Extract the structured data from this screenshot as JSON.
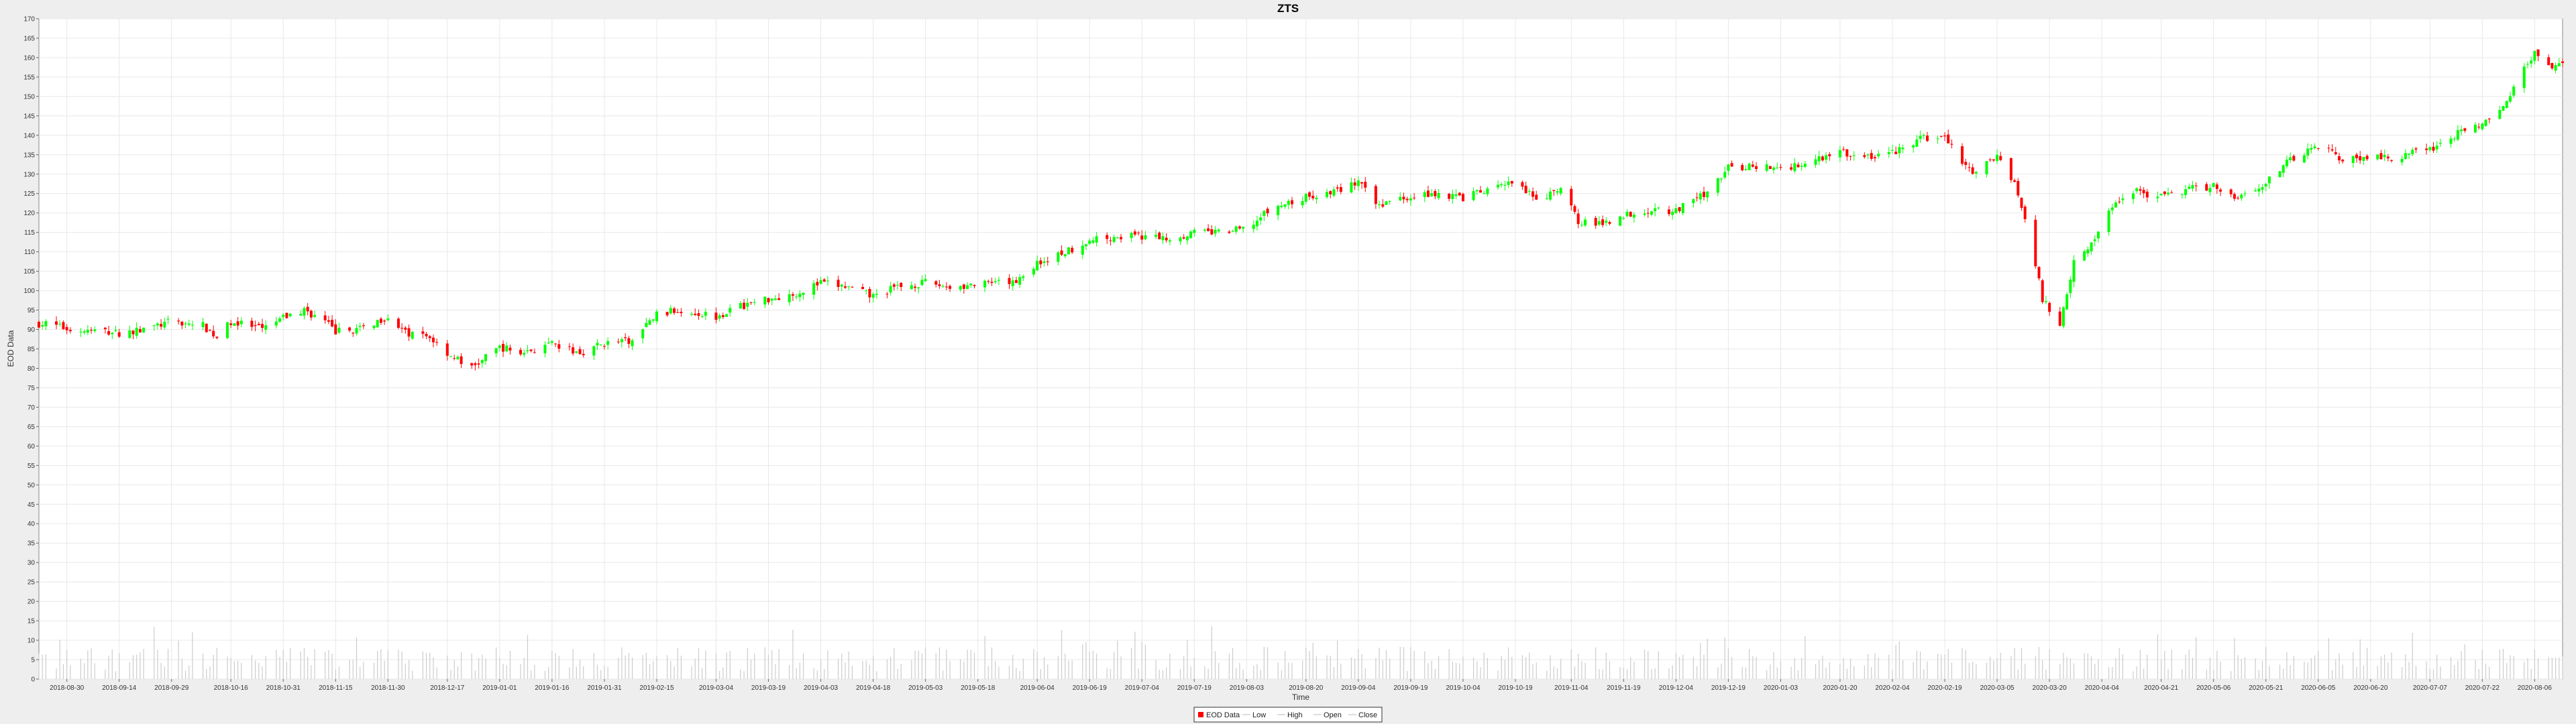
{
  "chart_data": {
    "type": "candlestick",
    "title": "ZTS",
    "xlabel": "Time",
    "ylabel": "EOD Data",
    "ylim": [
      0,
      170
    ],
    "y_ticks": [
      0,
      5,
      10,
      15,
      20,
      25,
      30,
      35,
      40,
      45,
      50,
      55,
      60,
      65,
      70,
      75,
      80,
      85,
      90,
      95,
      100,
      105,
      110,
      115,
      120,
      125,
      130,
      135,
      140,
      145,
      150,
      155,
      160,
      165,
      170
    ],
    "x_range": [
      "2018-08-22",
      "2020-08-14"
    ],
    "x_ticks": [
      "2018-08-30",
      "2018-09-14",
      "2018-09-29",
      "2018-10-16",
      "2018-10-31",
      "2018-11-15",
      "2018-11-30",
      "2018-12-17",
      "2019-01-01",
      "2019-01-16",
      "2019-01-31",
      "2019-02-15",
      "2019-03-04",
      "2019-03-19",
      "2019-04-03",
      "2019-04-18",
      "2019-05-03",
      "2019-05-18",
      "2019-06-04",
      "2019-06-19",
      "2019-07-04",
      "2019-07-19",
      "2019-08-03",
      "2019-08-20",
      "2019-09-04",
      "2019-09-19",
      "2019-10-04",
      "2019-10-19",
      "2019-11-04",
      "2019-11-19",
      "2019-12-04",
      "2019-12-19",
      "2020-01-03",
      "2020-01-20",
      "2020-02-04",
      "2020-02-19",
      "2020-03-05",
      "2020-03-20",
      "2020-04-04",
      "2020-04-21",
      "2020-05-06",
      "2020-05-21",
      "2020-06-05",
      "2020-06-20",
      "2020-07-07",
      "2020-07-22",
      "2020-08-06"
    ],
    "grid": true,
    "legend_position": "bottom",
    "legend": [
      "EOD Data",
      "Low",
      "High",
      "Open",
      "Close"
    ],
    "colors": {
      "up": "#00ff00",
      "down": "#ff0000",
      "volume": "#cccccc",
      "grid": "#e8e8e8",
      "plot_bg": "#ffffff"
    },
    "close_series": [
      [
        "2018-08-24",
        91.5
      ],
      [
        "2018-09-01",
        89.8
      ],
      [
        "2018-09-10",
        89.5
      ],
      [
        "2018-09-14",
        89.0
      ],
      [
        "2018-09-20",
        89.8
      ],
      [
        "2018-09-29",
        92.0
      ],
      [
        "2018-10-08",
        91.0
      ],
      [
        "2018-10-12",
        88.0
      ],
      [
        "2018-10-16",
        92.0
      ],
      [
        "2018-10-25",
        90.0
      ],
      [
        "2018-10-31",
        93.0
      ],
      [
        "2018-11-06",
        95.0
      ],
      [
        "2018-11-12",
        92.0
      ],
      [
        "2018-11-15",
        89.5
      ],
      [
        "2018-11-22",
        90.0
      ],
      [
        "2018-11-30",
        93.5
      ],
      [
        "2018-12-05",
        89.0
      ],
      [
        "2018-12-12",
        88.0
      ],
      [
        "2018-12-17",
        84.0
      ],
      [
        "2018-12-24",
        80.0
      ],
      [
        "2019-01-01",
        85.5
      ],
      [
        "2019-01-07",
        84.0
      ],
      [
        "2019-01-16",
        86.0
      ],
      [
        "2019-01-24",
        84.0
      ],
      [
        "2019-01-31",
        86.5
      ],
      [
        "2019-02-08",
        87.0
      ],
      [
        "2019-02-15",
        94.0
      ],
      [
        "2019-02-22",
        95.0
      ],
      [
        "2019-03-04",
        93.5
      ],
      [
        "2019-03-11",
        96.0
      ],
      [
        "2019-03-19",
        98.0
      ],
      [
        "2019-03-26",
        99.0
      ],
      [
        "2019-04-03",
        102.0
      ],
      [
        "2019-04-10",
        101.0
      ],
      [
        "2019-04-18",
        98.5
      ],
      [
        "2019-04-25",
        101.0
      ],
      [
        "2019-05-03",
        102.0
      ],
      [
        "2019-05-10",
        101.0
      ],
      [
        "2019-05-18",
        101.5
      ],
      [
        "2019-05-28",
        102.0
      ],
      [
        "2019-06-04",
        107.0
      ],
      [
        "2019-06-12",
        110.0
      ],
      [
        "2019-06-19",
        113.0
      ],
      [
        "2019-06-27",
        114.0
      ],
      [
        "2019-07-04",
        114.0
      ],
      [
        "2019-07-12",
        113.5
      ],
      [
        "2019-07-19",
        115.0
      ],
      [
        "2019-07-27",
        115.0
      ],
      [
        "2019-08-03",
        116.0
      ],
      [
        "2019-08-10",
        121.0
      ],
      [
        "2019-08-20",
        124.0
      ],
      [
        "2019-08-28",
        125.5
      ],
      [
        "2019-09-04",
        128.0
      ],
      [
        "2019-09-09",
        122.0
      ],
      [
        "2019-09-19",
        124.5
      ],
      [
        "2019-09-26",
        125.0
      ],
      [
        "2019-10-04",
        124.0
      ],
      [
        "2019-10-12",
        126.0
      ],
      [
        "2019-10-19",
        128.0
      ],
      [
        "2019-10-25",
        123.0
      ],
      [
        "2019-11-01",
        126.0
      ],
      [
        "2019-11-06",
        118.0
      ],
      [
        "2019-11-12",
        117.0
      ],
      [
        "2019-11-19",
        119.5
      ],
      [
        "2019-11-27",
        121.0
      ],
      [
        "2019-12-04",
        120.5
      ],
      [
        "2019-12-12",
        125.0
      ],
      [
        "2019-12-19",
        131.5
      ],
      [
        "2019-12-27",
        132.0
      ],
      [
        "2020-01-03",
        131.5
      ],
      [
        "2020-01-10",
        133.0
      ],
      [
        "2020-01-20",
        136.0
      ],
      [
        "2020-01-26",
        134.0
      ],
      [
        "2020-02-04",
        135.5
      ],
      [
        "2020-02-12",
        139.0
      ],
      [
        "2020-02-19",
        139.5
      ],
      [
        "2020-02-24",
        133.0
      ],
      [
        "2020-02-28",
        130.0
      ],
      [
        "2020-03-05",
        135.0
      ],
      [
        "2020-03-10",
        128.0
      ],
      [
        "2020-03-14",
        115.0
      ],
      [
        "2020-03-18",
        98.0
      ],
      [
        "2020-03-23",
        91.0
      ],
      [
        "2020-03-27",
        108.0
      ],
      [
        "2020-04-02",
        113.0
      ],
      [
        "2020-04-07",
        122.0
      ],
      [
        "2020-04-13",
        126.0
      ],
      [
        "2020-04-21",
        124.0
      ],
      [
        "2020-04-28",
        126.0
      ],
      [
        "2020-05-06",
        127.0
      ],
      [
        "2020-05-13",
        124.0
      ],
      [
        "2020-05-21",
        128.0
      ],
      [
        "2020-05-28",
        133.5
      ],
      [
        "2020-06-05",
        137.5
      ],
      [
        "2020-06-12",
        134.0
      ],
      [
        "2020-06-20",
        134.0
      ],
      [
        "2020-06-28",
        134.5
      ],
      [
        "2020-07-07",
        136.5
      ],
      [
        "2020-07-14",
        140.0
      ],
      [
        "2020-07-22",
        143.0
      ],
      [
        "2020-07-29",
        148.0
      ],
      [
        "2020-08-03",
        157.0
      ],
      [
        "2020-08-06",
        161.0
      ],
      [
        "2020-08-11",
        158.0
      ],
      [
        "2020-08-14",
        158.5
      ]
    ],
    "volume_range": [
      2,
      16
    ]
  }
}
